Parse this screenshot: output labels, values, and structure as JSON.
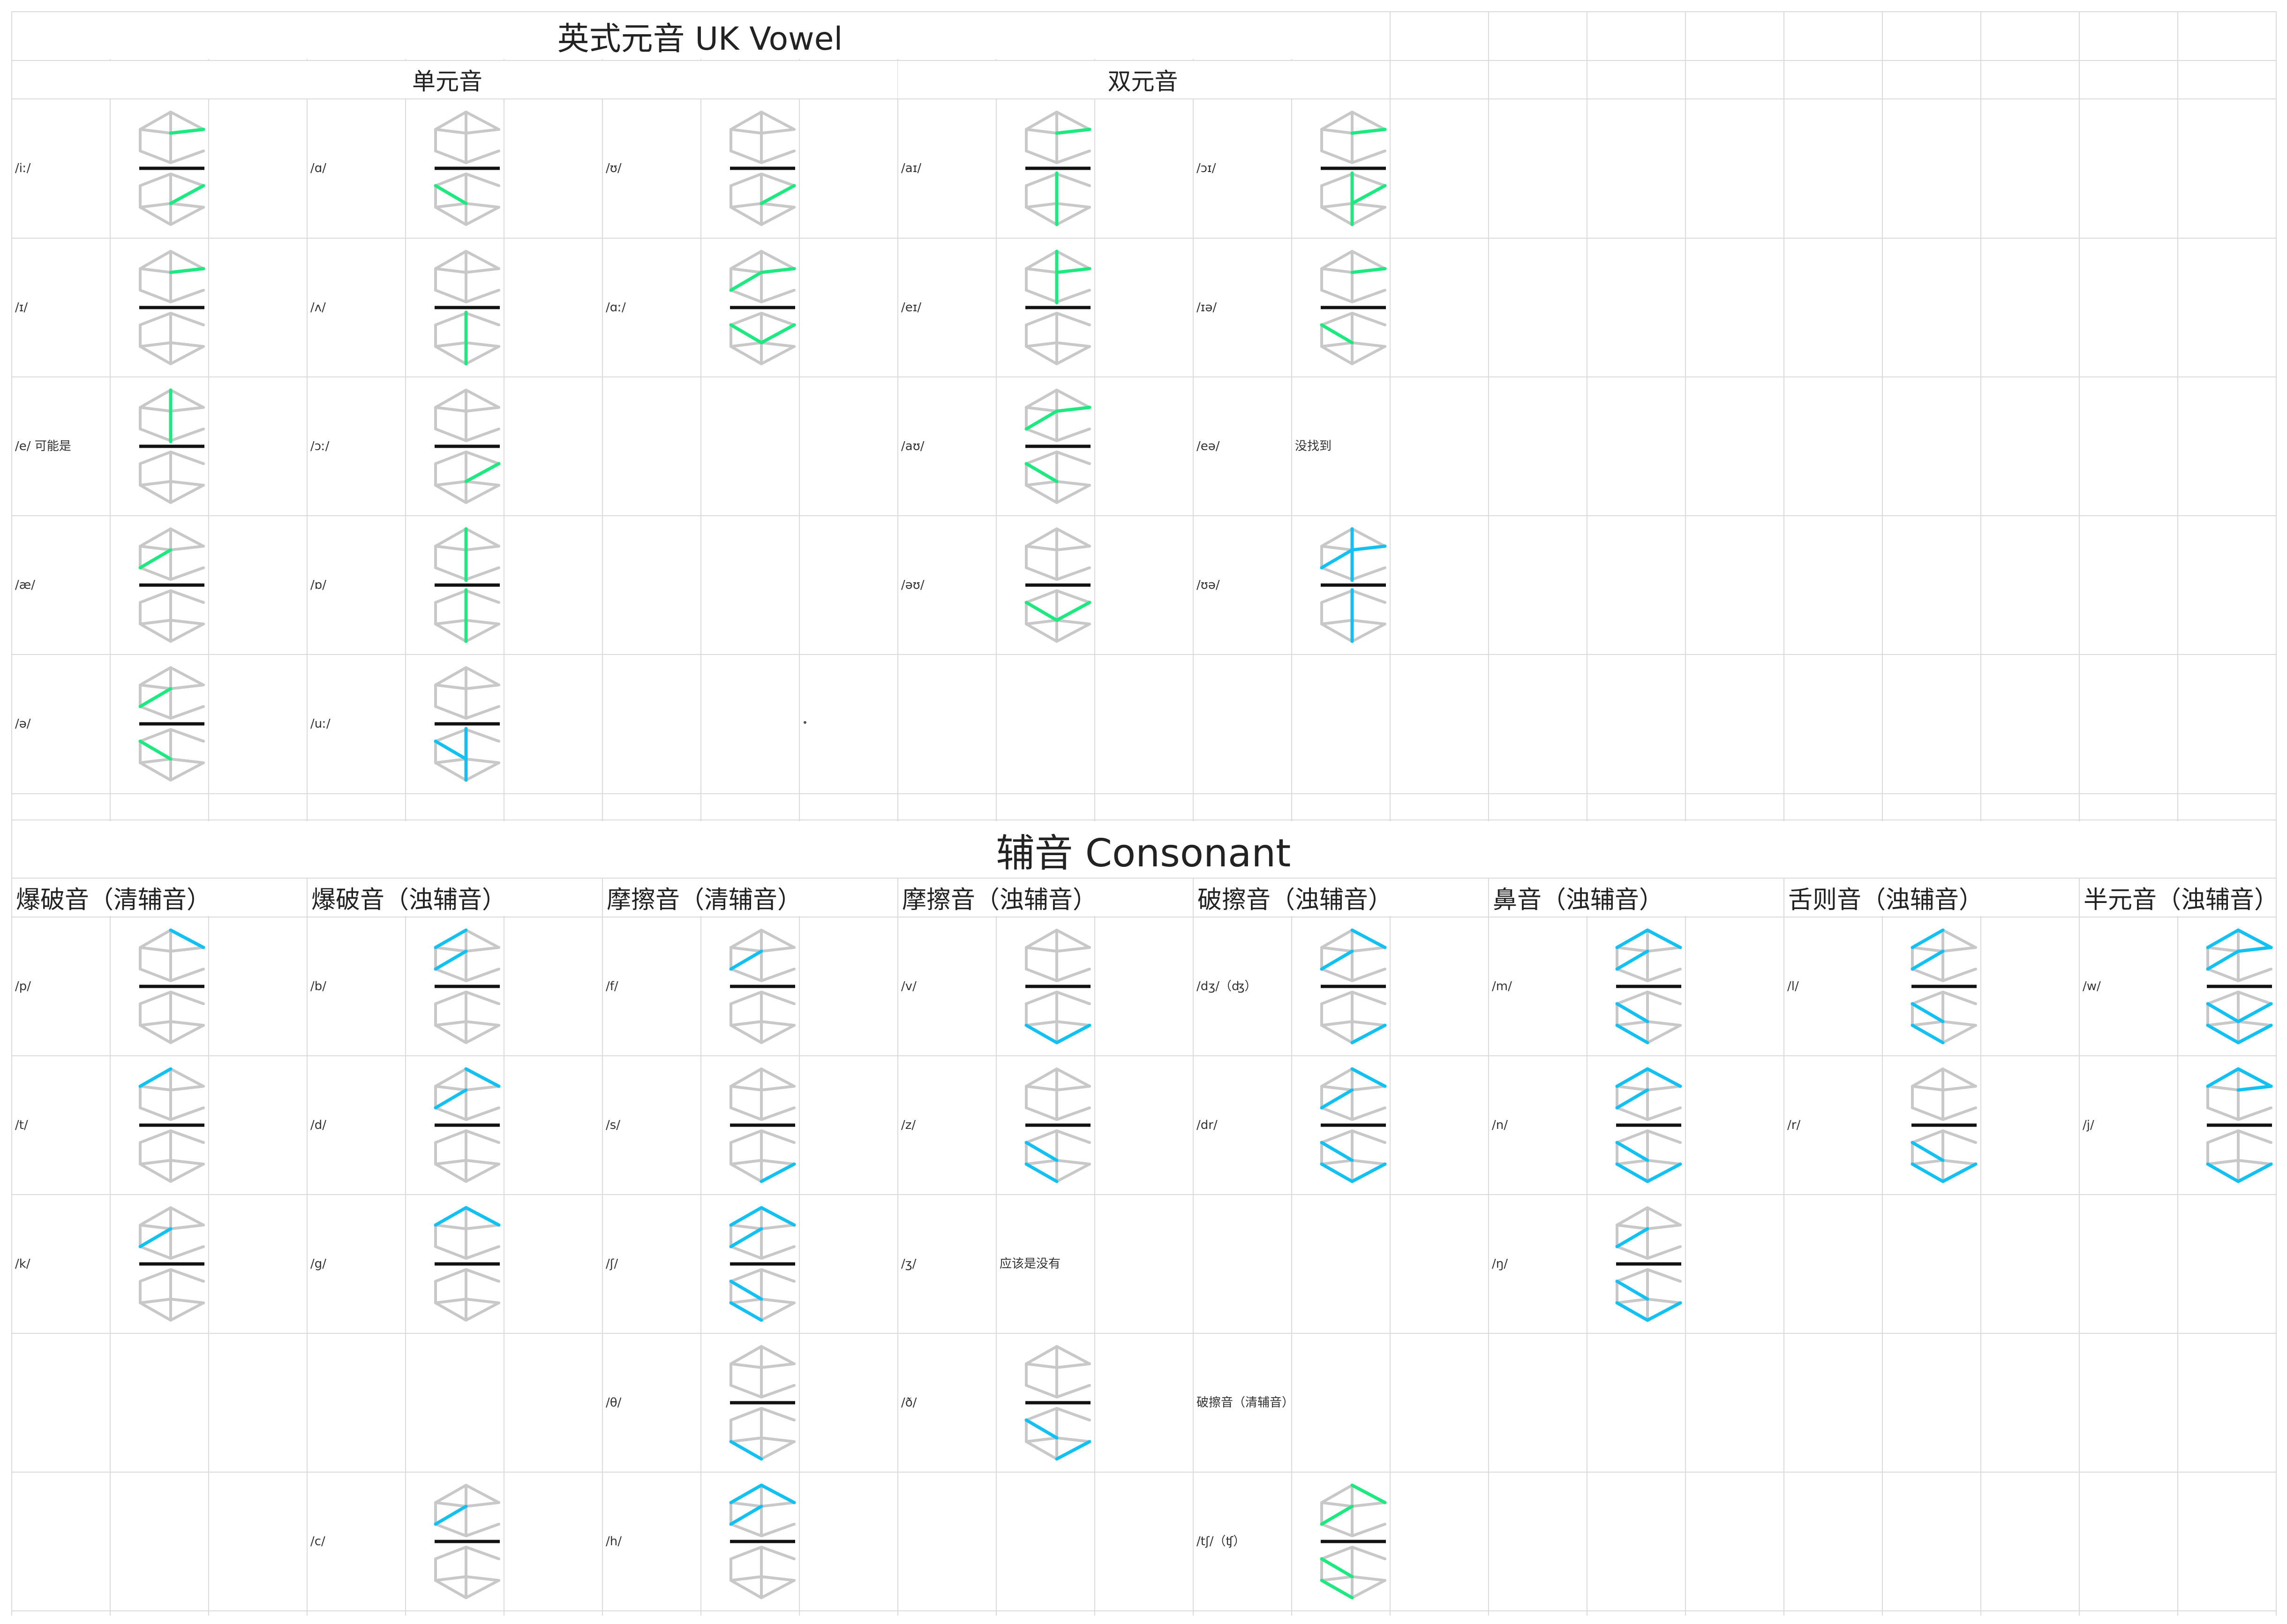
{
  "vowel_title": "英式元音 UK Vowel",
  "monophthong_header": "单元音",
  "diphthong_header": "双元音",
  "consonant_title": "辅音 Consonant",
  "colors": {
    "grid": "#dadada",
    "inactive": "#c8c8c8",
    "bar": "#111111",
    "vowel": "#1de980",
    "consonant": "#12c0f2"
  },
  "segment_legend": [
    "UL",
    "UR",
    "UCL",
    "UCR",
    "UV",
    "LL",
    "LR",
    "LCL",
    "LCR",
    "LV"
  ],
  "vowel_cells": [
    {
      "label": "/iː/",
      "col": 0,
      "row": 0,
      "color": "vowel",
      "on": [
        "UCR",
        "LCR"
      ]
    },
    {
      "label": "/ɪ/",
      "col": 0,
      "row": 1,
      "color": "vowel",
      "on": [
        "UCR"
      ]
    },
    {
      "label": "/e/ 可能是",
      "col": 0,
      "row": 2,
      "color": "vowel",
      "on": [
        "UV"
      ]
    },
    {
      "label": "/æ/",
      "col": 0,
      "row": 3,
      "color": "vowel",
      "on": [
        "UCL"
      ]
    },
    {
      "label": "/ə/",
      "col": 0,
      "row": 4,
      "color": "vowel",
      "on": [
        "UCL",
        "LCL"
      ]
    },
    {
      "label": "/ɑ/",
      "col": 1,
      "row": 0,
      "color": "vowel",
      "on": [
        "LCL"
      ]
    },
    {
      "label": "/ʌ/",
      "col": 1,
      "row": 1,
      "color": "vowel",
      "on": [
        "LV"
      ]
    },
    {
      "label": "/ɔː/",
      "col": 1,
      "row": 2,
      "color": "vowel",
      "on": [
        "LCR"
      ]
    },
    {
      "label": "/ɒ/",
      "col": 1,
      "row": 3,
      "color": "vowel",
      "on": [
        "UV",
        "LV"
      ]
    },
    {
      "label": "/uː/",
      "col": 1,
      "row": 4,
      "color": "consonant",
      "on": [
        "LCL",
        "LV"
      ]
    },
    {
      "label": "/ʊ/",
      "col": 2,
      "row": 0,
      "color": "vowel",
      "on": [
        "LCR"
      ]
    },
    {
      "label": "/ɑː/",
      "col": 2,
      "row": 1,
      "color": "vowel",
      "on": [
        "UCL",
        "UCR",
        "LCL",
        "LCR"
      ]
    },
    {
      "label": "/aɪ/",
      "col": 3,
      "row": 0,
      "color": "vowel",
      "on": [
        "UCR",
        "LV"
      ]
    },
    {
      "label": "/eɪ/",
      "col": 3,
      "row": 1,
      "color": "vowel",
      "on": [
        "UV",
        "UCR"
      ]
    },
    {
      "label": "/aʊ/",
      "col": 3,
      "row": 2,
      "color": "vowel",
      "on": [
        "UCL",
        "UCR",
        "LCL"
      ]
    },
    {
      "label": "/əʊ/",
      "col": 3,
      "row": 3,
      "color": "vowel",
      "on": [
        "LCL",
        "LCR"
      ]
    },
    {
      "label": "/ɔɪ/",
      "col": 4,
      "row": 0,
      "color": "vowel",
      "on": [
        "UCR",
        "LCR",
        "LV"
      ]
    },
    {
      "label": "/ɪə/",
      "col": 4,
      "row": 1,
      "color": "vowel",
      "on": [
        "UCR",
        "LCL"
      ]
    },
    {
      "label": "/eə/",
      "col": 4,
      "row": 2,
      "note": "没找到"
    },
    {
      "label": "/ʊə/",
      "col": 4,
      "row": 3,
      "color": "consonant",
      "on": [
        "UCL",
        "UCR",
        "UV",
        "LV"
      ]
    }
  ],
  "consonant_categories": [
    "爆破音（清辅音）",
    "爆破音（浊辅音）",
    "摩擦音（清辅音）",
    "摩擦音（浊辅音）",
    "破擦音（浊辅音）",
    "鼻音（浊辅音）",
    "舌则音（浊辅音）",
    "半元音（浊辅音）"
  ],
  "consonant_cells": [
    {
      "label": "/p/",
      "col": 0,
      "row": 0,
      "color": "consonant",
      "on": [
        "UR"
      ]
    },
    {
      "label": "/t/",
      "col": 0,
      "row": 1,
      "color": "consonant",
      "on": [
        "UL"
      ]
    },
    {
      "label": "/k/",
      "col": 0,
      "row": 2,
      "color": "consonant",
      "on": [
        "UCL"
      ]
    },
    {
      "label": "/b/",
      "col": 1,
      "row": 0,
      "color": "consonant",
      "on": [
        "UL",
        "UCL"
      ]
    },
    {
      "label": "/d/",
      "col": 1,
      "row": 1,
      "color": "consonant",
      "on": [
        "UR",
        "UCL"
      ]
    },
    {
      "label": "/g/",
      "col": 1,
      "row": 2,
      "color": "consonant",
      "on": [
        "UL",
        "UR"
      ]
    },
    {
      "label": "/c/",
      "col": 1,
      "row": 4,
      "color": "consonant",
      "on": [
        "UCL"
      ]
    },
    {
      "label": "/f/",
      "col": 2,
      "row": 0,
      "color": "consonant",
      "on": [
        "UCL"
      ]
    },
    {
      "label": "/s/",
      "col": 2,
      "row": 1,
      "color": "consonant",
      "on": [
        "LR"
      ]
    },
    {
      "label": "/ʃ/",
      "col": 2,
      "row": 2,
      "color": "consonant",
      "on": [
        "UL",
        "UR",
        "UCL",
        "LCL",
        "LL"
      ]
    },
    {
      "label": "/θ/",
      "col": 2,
      "row": 3,
      "color": "consonant",
      "on": [
        "LL"
      ]
    },
    {
      "label": "/h/",
      "col": 2,
      "row": 4,
      "color": "consonant",
      "on": [
        "UL",
        "UR",
        "UCL"
      ]
    },
    {
      "label": "/v/",
      "col": 3,
      "row": 0,
      "color": "consonant",
      "on": [
        "LL",
        "LR"
      ]
    },
    {
      "label": "/z/",
      "col": 3,
      "row": 1,
      "color": "consonant",
      "on": [
        "LCL",
        "LL"
      ]
    },
    {
      "label": "/ʒ/",
      "col": 3,
      "row": 2,
      "note": "应该是没有"
    },
    {
      "label": "/ð/",
      "col": 3,
      "row": 3,
      "color": "consonant",
      "on": [
        "LCL",
        "LR"
      ]
    },
    {
      "label": "/dʒ/（ʤ）",
      "col": 4,
      "row": 0,
      "color": "consonant",
      "on": [
        "UR",
        "UCL",
        "LR"
      ]
    },
    {
      "label": "/dr/",
      "col": 4,
      "row": 1,
      "color": "consonant",
      "on": [
        "UR",
        "UCL",
        "LCL",
        "LL",
        "LR"
      ]
    },
    {
      "label": "破擦音（清辅音）",
      "col": 4,
      "row": 3,
      "is_text": true
    },
    {
      "label": "/tʃ/（ʧ）",
      "col": 4,
      "row": 4,
      "color": "vowel",
      "on": [
        "UR",
        "UCL",
        "LCL",
        "LL"
      ]
    },
    {
      "label": "/m/",
      "col": 5,
      "row": 0,
      "color": "consonant",
      "on": [
        "UL",
        "UR",
        "UCL",
        "LCL",
        "LL"
      ]
    },
    {
      "label": "/n/",
      "col": 5,
      "row": 1,
      "color": "consonant",
      "on": [
        "UL",
        "UR",
        "UCL",
        "LCL",
        "LL",
        "LR"
      ]
    },
    {
      "label": "/ŋ/",
      "col": 5,
      "row": 2,
      "color": "consonant",
      "on": [
        "UCL",
        "LCL",
        "LL",
        "LR"
      ]
    },
    {
      "label": "/l/",
      "col": 6,
      "row": 0,
      "color": "consonant",
      "on": [
        "UL",
        "UCL",
        "LCL",
        "LL"
      ]
    },
    {
      "label": "/r/",
      "col": 6,
      "row": 1,
      "color": "consonant",
      "on": [
        "LCL",
        "LL",
        "LR"
      ]
    },
    {
      "label": "/w/",
      "col": 7,
      "row": 0,
      "color": "consonant",
      "on": [
        "UL",
        "UR",
        "UCL",
        "UCR",
        "LCL",
        "LCR",
        "LL",
        "LR"
      ]
    },
    {
      "label": "/j/",
      "col": 7,
      "row": 1,
      "color": "consonant",
      "on": [
        "UL",
        "UR",
        "UCR",
        "LL",
        "LR"
      ]
    }
  ]
}
